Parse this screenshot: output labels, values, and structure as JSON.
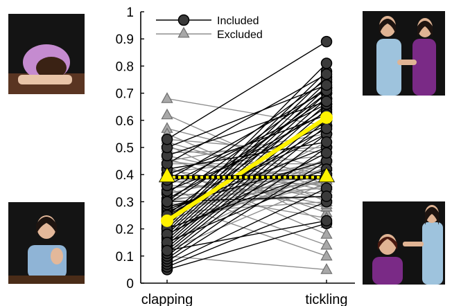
{
  "chart_data": {
    "type": "line",
    "categories": [
      "clapping",
      "tickling"
    ],
    "ylim": [
      0,
      1
    ],
    "yticks": [
      "0",
      "0.1",
      "0.2",
      "0.3",
      "0.4",
      "0.5",
      "0.6",
      "0.7",
      "0.8",
      "0.9",
      "1"
    ],
    "legend": {
      "placement": "top-left",
      "entries": [
        "Included",
        "Excluded"
      ]
    },
    "series": [
      {
        "name": "Included",
        "color": "#000000",
        "marker": "circle",
        "pairs": [
          [
            0.05,
            0.22
          ],
          [
            0.06,
            0.3
          ],
          [
            0.07,
            0.35
          ],
          [
            0.08,
            0.45
          ],
          [
            0.09,
            0.5
          ],
          [
            0.1,
            0.55
          ],
          [
            0.11,
            0.58
          ],
          [
            0.12,
            0.6
          ],
          [
            0.13,
            0.62
          ],
          [
            0.14,
            0.64
          ],
          [
            0.15,
            0.66
          ],
          [
            0.16,
            0.68
          ],
          [
            0.17,
            0.7
          ],
          [
            0.18,
            0.72
          ],
          [
            0.19,
            0.74
          ],
          [
            0.2,
            0.76
          ],
          [
            0.21,
            0.78
          ],
          [
            0.22,
            0.81
          ],
          [
            0.23,
            0.6
          ],
          [
            0.24,
            0.65
          ],
          [
            0.25,
            0.7
          ],
          [
            0.26,
            0.55
          ],
          [
            0.27,
            0.5
          ],
          [
            0.28,
            0.45
          ],
          [
            0.29,
            0.68
          ],
          [
            0.3,
            0.72
          ],
          [
            0.31,
            0.63
          ],
          [
            0.33,
            0.75
          ],
          [
            0.34,
            0.58
          ],
          [
            0.36,
            0.66
          ],
          [
            0.38,
            0.71
          ],
          [
            0.4,
            0.62
          ],
          [
            0.42,
            0.52
          ],
          [
            0.44,
            0.77
          ],
          [
            0.47,
            0.67
          ],
          [
            0.5,
            0.73
          ],
          [
            0.53,
            0.89
          ],
          [
            0.2,
            0.42
          ],
          [
            0.18,
            0.48
          ],
          [
            0.15,
            0.4
          ],
          [
            0.25,
            0.57
          ],
          [
            0.12,
            0.23
          ],
          [
            0.3,
            0.32
          ]
        ]
      },
      {
        "name": "Excluded",
        "color": "#999999",
        "marker": "triangle",
        "pairs": [
          [
            0.68,
            0.58
          ],
          [
            0.62,
            0.36
          ],
          [
            0.57,
            0.42
          ],
          [
            0.55,
            0.3
          ],
          [
            0.53,
            0.48
          ],
          [
            0.51,
            0.22
          ],
          [
            0.5,
            0.4
          ],
          [
            0.48,
            0.5
          ],
          [
            0.47,
            0.34
          ],
          [
            0.46,
            0.26
          ],
          [
            0.45,
            0.38
          ],
          [
            0.44,
            0.44
          ],
          [
            0.43,
            0.18
          ],
          [
            0.42,
            0.31
          ],
          [
            0.41,
            0.47
          ],
          [
            0.4,
            0.36
          ],
          [
            0.39,
            0.41
          ],
          [
            0.38,
            0.28
          ],
          [
            0.37,
            0.43
          ],
          [
            0.36,
            0.33
          ],
          [
            0.35,
            0.39
          ],
          [
            0.34,
            0.24
          ],
          [
            0.33,
            0.45
          ],
          [
            0.32,
            0.37
          ],
          [
            0.31,
            0.35
          ],
          [
            0.3,
            0.42
          ],
          [
            0.29,
            0.32
          ],
          [
            0.28,
            0.4
          ],
          [
            0.27,
            0.38
          ],
          [
            0.26,
            0.3
          ],
          [
            0.25,
            0.44
          ],
          [
            0.24,
            0.36
          ],
          [
            0.22,
            0.52
          ],
          [
            0.2,
            0.4
          ],
          [
            0.18,
            0.46
          ],
          [
            0.15,
            0.43
          ],
          [
            0.12,
            0.37
          ],
          [
            0.1,
            0.05
          ],
          [
            0.3,
            0.1
          ],
          [
            0.35,
            0.14
          ],
          [
            0.45,
            0.55
          ],
          [
            0.52,
            0.35
          ],
          [
            0.4,
            0.29
          ],
          [
            0.22,
            0.38
          ]
        ]
      }
    ],
    "means": [
      {
        "series": "Included",
        "values": [
          0.23,
          0.61
        ],
        "color": "#FFF200",
        "style": "solid",
        "marker": "circle"
      },
      {
        "series": "Excluded",
        "values": [
          0.39,
          0.39
        ],
        "color": "#FFF200",
        "style": "dotted",
        "marker": "triangle"
      }
    ]
  }
}
